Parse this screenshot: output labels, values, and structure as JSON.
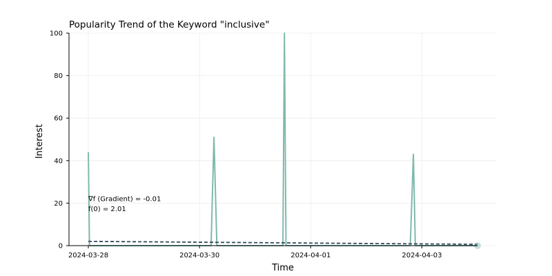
{
  "chart_data": {
    "type": "line",
    "title": "Popularity Trend of the Keyword \"inclusive\"",
    "xlabel": "Time",
    "ylabel": "Interest",
    "x_range": [
      "2024-03-28 00:00",
      "2024-04-04 00:00"
    ],
    "ylim": [
      0,
      100
    ],
    "yticks": [
      0,
      20,
      40,
      60,
      80,
      100
    ],
    "xticks": [
      "2024-03-28",
      "2024-03-30",
      "2024-04-01",
      "2024-04-03"
    ],
    "grid": true,
    "colors": {
      "series": "#7fb9ac",
      "trend": "#34495e",
      "grid": "#ebebeb",
      "axis": "#000000"
    },
    "series": [
      {
        "style": "solid",
        "points": [
          {
            "x": "2024-03-28 00:00",
            "y": 44
          },
          {
            "x": "2024-03-28 00:30",
            "y": 0
          },
          {
            "x": "2024-03-30 05:00",
            "y": 0
          },
          {
            "x": "2024-03-30 06:15",
            "y": 51
          },
          {
            "x": "2024-03-30 07:30",
            "y": 0
          },
          {
            "x": "2024-03-31 12:00",
            "y": 0
          },
          {
            "x": "2024-03-31 12:40",
            "y": 100
          },
          {
            "x": "2024-03-31 13:20",
            "y": 0
          },
          {
            "x": "2024-04-02 19:00",
            "y": 0
          },
          {
            "x": "2024-04-02 20:20",
            "y": 43
          },
          {
            "x": "2024-04-02 21:10",
            "y": 0
          },
          {
            "x": "2024-04-04 00:00",
            "y": 0
          }
        ]
      },
      {
        "style": "dashed",
        "points": [
          {
            "x": "2024-03-28 00:00",
            "y": 2.01
          },
          {
            "x": "2024-04-04 00:00",
            "y": 0.62
          }
        ]
      }
    ],
    "markers": [
      {
        "x": "2024-04-04 00:00",
        "y": 0
      }
    ],
    "annotations": [
      {
        "text": "∇f (Gradient) = -0.01",
        "x": "2024-03-28 00:00",
        "y": 21
      },
      {
        "text": "f(0) = 2.01",
        "x": "2024-03-28 00:00",
        "y": 16.3
      }
    ]
  }
}
